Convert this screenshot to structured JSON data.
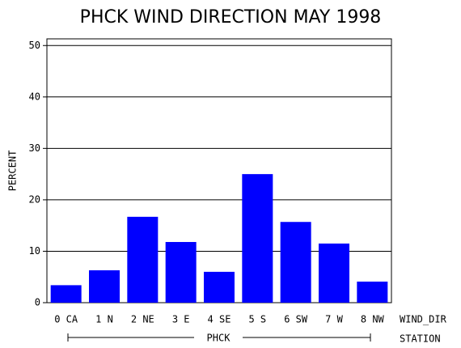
{
  "chart_data": {
    "type": "bar",
    "title": "PHCK WIND DIRECTION MAY 1998",
    "ylabel": "PERCENT",
    "xlabel": "WIND_DIR",
    "group_label": "PHCK",
    "group_axis_label": "STATION",
    "categories": [
      "0 CA",
      "1 N",
      "2 NE",
      "3 E",
      "4 SE",
      "5 S",
      "6 SW",
      "7 W",
      "8 NW"
    ],
    "values": [
      3.4,
      6.3,
      16.7,
      11.8,
      6.0,
      25.0,
      15.7,
      11.5,
      4.1
    ],
    "color": "#0000ff",
    "ylim": [
      0,
      51.3
    ],
    "yticks": [
      0,
      10,
      20,
      30,
      40,
      50
    ],
    "grid": true
  }
}
